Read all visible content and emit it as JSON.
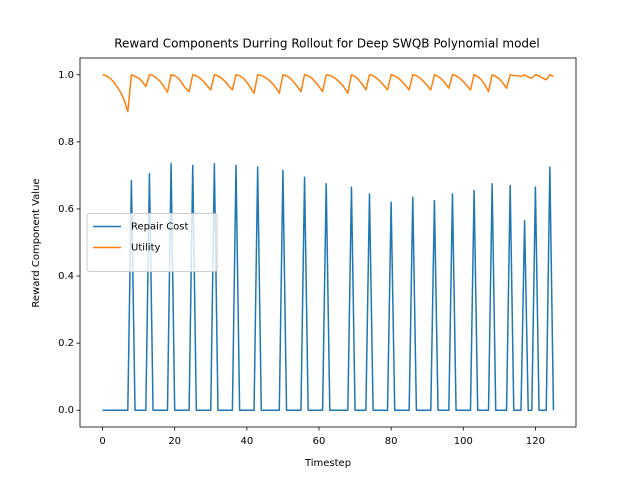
{
  "chart_data": {
    "type": "line",
    "title": "Reward Components Durring Rollout for Deep SWQB Polynomial model",
    "xlabel": "Timestep",
    "ylabel": "Reward Component Value",
    "x": [
      0,
      1,
      2,
      3,
      4,
      5,
      6,
      7,
      8,
      9,
      10,
      11,
      12,
      13,
      14,
      15,
      16,
      17,
      18,
      19,
      20,
      21,
      22,
      23,
      24,
      25,
      26,
      27,
      28,
      29,
      30,
      31,
      32,
      33,
      34,
      35,
      36,
      37,
      38,
      39,
      40,
      41,
      42,
      43,
      44,
      45,
      46,
      47,
      48,
      49,
      50,
      51,
      52,
      53,
      54,
      55,
      56,
      57,
      58,
      59,
      60,
      61,
      62,
      63,
      64,
      65,
      66,
      67,
      68,
      69,
      70,
      71,
      72,
      73,
      74,
      75,
      76,
      77,
      78,
      79,
      80,
      81,
      82,
      83,
      84,
      85,
      86,
      87,
      88,
      89,
      90,
      91,
      92,
      93,
      94,
      95,
      96,
      97,
      98,
      99,
      100,
      101,
      102,
      103,
      104,
      105,
      106,
      107,
      108,
      109,
      110,
      111,
      112,
      113,
      114,
      115,
      116,
      117,
      118,
      119,
      120,
      121,
      122,
      123,
      124,
      125
    ],
    "series": [
      {
        "name": "Repair Cost",
        "color": "#1f77b4",
        "values": [
          0,
          0,
          0,
          0,
          0,
          0,
          0,
          0,
          0.685,
          0,
          0,
          0,
          0,
          0.705,
          0,
          0,
          0,
          0,
          0,
          0.735,
          0,
          0,
          0,
          0,
          0,
          0.73,
          0,
          0,
          0,
          0,
          0,
          0.735,
          0,
          0,
          0,
          0,
          0,
          0.73,
          0,
          0,
          0,
          0,
          0,
          0.725,
          0,
          0,
          0,
          0,
          0,
          0,
          0.715,
          0,
          0,
          0,
          0,
          0,
          0.695,
          0,
          0,
          0,
          0,
          0,
          0.675,
          0,
          0,
          0,
          0,
          0,
          0,
          0.665,
          0,
          0,
          0,
          0,
          0.645,
          0,
          0,
          0,
          0,
          0,
          0.62,
          0,
          0,
          0,
          0,
          0,
          0.635,
          0,
          0,
          0,
          0,
          0,
          0.625,
          0,
          0,
          0,
          0,
          0.645,
          0,
          0,
          0,
          0,
          0,
          0.655,
          0,
          0,
          0,
          0,
          0.675,
          0,
          0,
          0,
          0,
          0.67,
          0,
          0,
          0,
          0.565,
          0,
          0,
          0.665,
          0,
          0,
          0,
          0.725,
          0
        ]
      },
      {
        "name": "Utility",
        "color": "#ff7f0e",
        "values": [
          1.0,
          0.997,
          0.99,
          0.98,
          0.965,
          0.948,
          0.925,
          0.89,
          1.0,
          0.995,
          0.99,
          0.98,
          0.965,
          1.0,
          0.998,
          0.99,
          0.98,
          0.965,
          0.948,
          1.0,
          0.997,
          0.99,
          0.975,
          0.96,
          0.95,
          1.0,
          0.997,
          0.99,
          0.98,
          0.967,
          0.955,
          1.0,
          0.997,
          0.99,
          0.98,
          0.967,
          0.955,
          1.0,
          0.997,
          0.99,
          0.978,
          0.962,
          0.945,
          1.0,
          0.998,
          0.993,
          0.985,
          0.975,
          0.962,
          0.945,
          1.0,
          0.997,
          0.99,
          0.978,
          0.965,
          0.95,
          1.0,
          0.997,
          0.99,
          0.978,
          0.965,
          0.95,
          1.0,
          0.998,
          0.993,
          0.985,
          0.975,
          0.962,
          0.945,
          1.0,
          0.995,
          0.985,
          0.972,
          0.955,
          1.0,
          0.997,
          0.99,
          0.98,
          0.968,
          0.955,
          1.0,
          0.997,
          0.99,
          0.98,
          0.968,
          0.955,
          1.0,
          0.997,
          0.99,
          0.98,
          0.968,
          0.955,
          1.0,
          0.995,
          0.987,
          0.975,
          0.96,
          1.0,
          0.997,
          0.99,
          0.98,
          0.968,
          0.955,
          1.0,
          0.995,
          0.985,
          0.97,
          0.95,
          1.0,
          0.995,
          0.988,
          0.975,
          0.96,
          1.0,
          0.998,
          0.997,
          0.995,
          1.0,
          0.993,
          0.99,
          1.0,
          0.997,
          0.99,
          0.985,
          1.0,
          0.995
        ]
      }
    ],
    "xlim": [
      -6.25,
      131.25
    ],
    "ylim": [
      -0.05,
      1.05
    ],
    "xticks": [
      0,
      20,
      40,
      60,
      80,
      100,
      120
    ],
    "yticks": [
      {
        "value": 0,
        "label": "0.0"
      },
      {
        "value": 0.2,
        "label": "0.2"
      },
      {
        "value": 0.4,
        "label": "0.4"
      },
      {
        "value": 0.6,
        "label": "0.6"
      },
      {
        "value": 0.8,
        "label": "0.8"
      },
      {
        "value": 1.0,
        "label": "1.0"
      }
    ],
    "legend": "center left",
    "grid": false
  }
}
